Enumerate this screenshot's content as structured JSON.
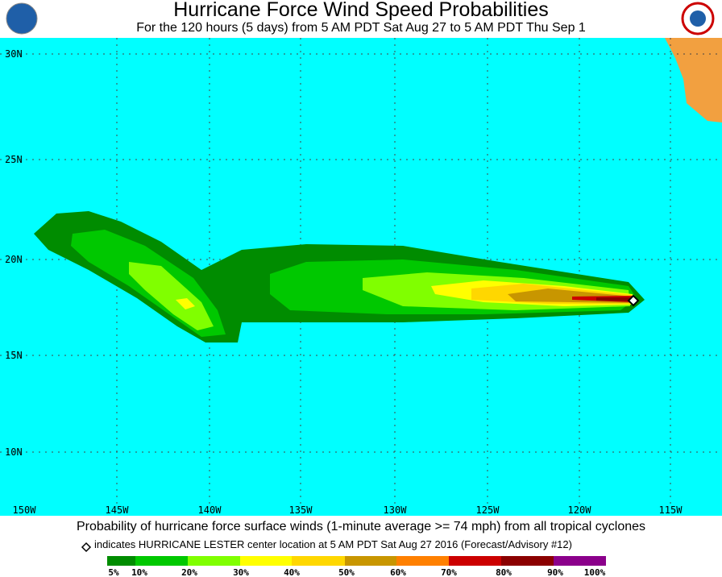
{
  "header": {
    "title": "Hurricane Force Wind Speed Probabilities",
    "subtitle": "For the 120 hours (5 days) from 5 AM PDT Sat Aug 27 to 5 AM PDT Thu Sep 1"
  },
  "map": {
    "lat_labels": [
      "30N",
      "25N",
      "20N",
      "15N",
      "10N"
    ],
    "lon_labels": [
      "150W",
      "145W",
      "140W",
      "135W",
      "130W",
      "125W",
      "120W",
      "115W"
    ]
  },
  "caption": "Probability of hurricane force surface winds (1-minute average >= 74 mph) from all tropical cyclones",
  "note": "indicates HURRICANE LESTER center location at 5 AM PDT Sat Aug 27 2016 (Forecast/Advisory #12)",
  "legend": {
    "labels": [
      "5%",
      "10%",
      "20%",
      "30%",
      "40%",
      "50%",
      "60%",
      "70%",
      "80%",
      "90%",
      "100%"
    ]
  }
}
